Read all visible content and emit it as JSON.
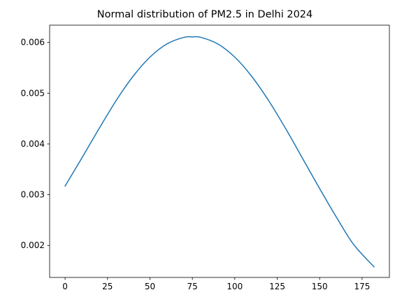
{
  "chart_data": {
    "type": "line",
    "title": "Normal distribution of PM2.5 in Delhi 2024",
    "xlabel": "",
    "ylabel": "",
    "xlim": [
      -9.1,
      191.1
    ],
    "ylim": [
      0.00137,
      0.00634
    ],
    "x_ticks": [
      0,
      25,
      50,
      75,
      100,
      125,
      150,
      175
    ],
    "x_tick_labels": [
      "0",
      "25",
      "50",
      "75",
      "100",
      "125",
      "150",
      "175"
    ],
    "y_ticks": [
      0.002,
      0.003,
      0.004,
      0.005,
      0.006
    ],
    "y_tick_labels": [
      "0.002",
      "0.003",
      "0.004",
      "0.005",
      "0.006"
    ],
    "grid": false,
    "series": [
      {
        "color": "#1f77b4",
        "x": [
          0,
          10,
          20,
          30,
          40,
          50,
          60,
          70,
          75,
          80,
          90,
          100,
          110,
          120,
          130,
          140,
          150,
          160,
          170,
          182
        ],
        "y": [
          0.00317,
          0.00373,
          0.0043,
          0.00485,
          0.00533,
          0.00571,
          0.00597,
          0.0061,
          0.00611,
          0.0061,
          0.00597,
          0.00571,
          0.00533,
          0.00485,
          0.0043,
          0.00371,
          0.00312,
          0.00255,
          0.00202,
          0.00158
        ]
      }
    ]
  }
}
